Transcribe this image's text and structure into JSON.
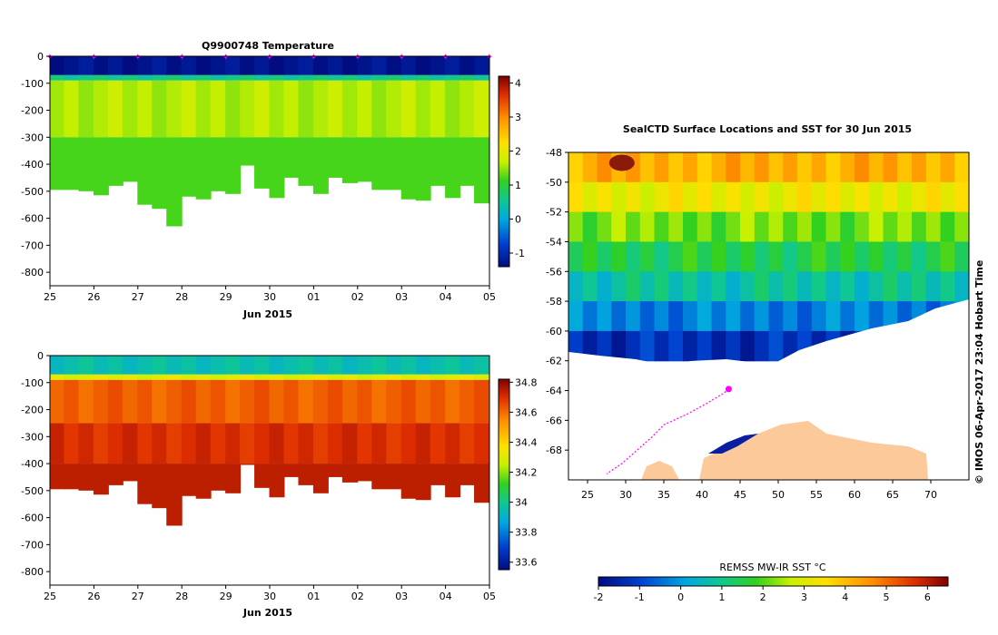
{
  "chart_data": [
    {
      "type": "heatmap",
      "id": "temperature",
      "title": "Q9900748  Temperature",
      "xlabel": "Jun 2015",
      "ylabel": "",
      "x_tick_labels": [
        "25",
        "26",
        "27",
        "28",
        "29",
        "30",
        "01",
        "02",
        "03",
        "04",
        "05"
      ],
      "x_tick_days": [
        0,
        1,
        2,
        3,
        4,
        5,
        6,
        7,
        8,
        9,
        10
      ],
      "ylim": [
        -850,
        0
      ],
      "y_ticks": [
        0,
        -100,
        -200,
        -300,
        -400,
        -500,
        -600,
        -700,
        -800
      ],
      "colorbar": {
        "min": -1.4,
        "max": 4.2,
        "ticks": [
          -1,
          0,
          1,
          2,
          3,
          4
        ]
      },
      "surface_markers_days": [
        0,
        1,
        2,
        3,
        4,
        5,
        6,
        7,
        8,
        9,
        10
      ],
      "layers": [
        {
          "from": 0,
          "to": -70,
          "value": -1.3
        },
        {
          "from": -70,
          "to": -90,
          "value": 0.6
        },
        {
          "from": -90,
          "to": -300,
          "value": 1.6
        },
        {
          "from": -300,
          "to": -500,
          "value": 1.2
        }
      ],
      "profile_days": [
        0,
        0.33,
        0.66,
        1,
        1.33,
        1.66,
        2,
        2.33,
        2.66,
        3,
        3.33,
        3.66,
        4,
        4.33,
        4.66,
        5,
        5.33,
        5.66,
        6,
        6.33,
        6.66,
        7,
        7.33,
        7.66,
        8,
        8.33,
        8.66,
        9,
        9.33,
        9.66,
        10
      ],
      "profile_max_depth": [
        -495,
        -495,
        -500,
        -515,
        -480,
        -465,
        -550,
        -565,
        -630,
        -520,
        -530,
        -500,
        -510,
        -405,
        -490,
        -525,
        -450,
        -480,
        -510,
        -450,
        -470,
        -465,
        -495,
        -495,
        -530,
        -535,
        -480,
        -525,
        -480,
        -545,
        -460
      ]
    },
    {
      "type": "heatmap",
      "id": "salinity",
      "title": "",
      "xlabel": "Jun 2015",
      "ylabel": "",
      "x_tick_labels": [
        "25",
        "26",
        "27",
        "28",
        "29",
        "30",
        "01",
        "02",
        "03",
        "04",
        "05"
      ],
      "x_tick_days": [
        0,
        1,
        2,
        3,
        4,
        5,
        6,
        7,
        8,
        9,
        10
      ],
      "ylim": [
        -850,
        0
      ],
      "y_ticks": [
        0,
        -100,
        -200,
        -300,
        -400,
        -500,
        -600,
        -700,
        -800
      ],
      "colorbar": {
        "min": 33.55,
        "max": 34.82,
        "ticks": [
          33.6,
          33.8,
          34,
          34.2,
          34.4,
          34.6,
          34.8
        ]
      },
      "layers": [
        {
          "from": 0,
          "to": -70,
          "value": 33.95
        },
        {
          "from": -70,
          "to": -90,
          "value": 34.3
        },
        {
          "from": -90,
          "to": -250,
          "value": 34.62
        },
        {
          "from": -250,
          "to": -400,
          "value": 34.7
        },
        {
          "from": -400,
          "to": -500,
          "value": 34.74
        }
      ],
      "profile_days": [
        0,
        0.33,
        0.66,
        1,
        1.33,
        1.66,
        2,
        2.33,
        2.66,
        3,
        3.33,
        3.66,
        4,
        4.33,
        4.66,
        5,
        5.33,
        5.66,
        6,
        6.33,
        6.66,
        7,
        7.33,
        7.66,
        8,
        8.33,
        8.66,
        9,
        9.33,
        9.66,
        10
      ],
      "profile_max_depth": [
        -495,
        -495,
        -500,
        -515,
        -480,
        -465,
        -550,
        -565,
        -630,
        -520,
        -530,
        -500,
        -510,
        -405,
        -490,
        -525,
        -450,
        -480,
        -510,
        -450,
        -470,
        -465,
        -495,
        -495,
        -530,
        -535,
        -480,
        -525,
        -480,
        -545,
        -460
      ]
    },
    {
      "type": "heatmap",
      "id": "sst_map",
      "title": "SealCTD Surface Locations and SST for 30 Jun 2015",
      "xlabel": "",
      "ylabel": "",
      "xlim": [
        22.5,
        75
      ],
      "ylim": [
        -70,
        -48
      ],
      "x_ticks": [
        25,
        30,
        35,
        40,
        45,
        50,
        55,
        60,
        65,
        70
      ],
      "y_ticks": [
        -48,
        -50,
        -52,
        -54,
        -56,
        -58,
        -60,
        -62,
        -64,
        -66,
        -68
      ],
      "y_tick_labels": [
        "-48",
        "-50",
        "-52",
        "-54",
        "-56",
        "-58",
        "-60",
        "-62",
        "-64",
        "-66",
        "-68"
      ],
      "colorbar": {
        "label": "REMSS MW-IR SST °C",
        "min": -2,
        "max": 6.5,
        "ticks": [
          -2,
          -1,
          0,
          1,
          2,
          3,
          4,
          5,
          6
        ]
      },
      "sst_bands": [
        {
          "lat_from": -48,
          "lat_to": -50,
          "value": 4.2
        },
        {
          "lat_from": -50,
          "lat_to": -52,
          "value": 3.2
        },
        {
          "lat_from": -52,
          "lat_to": -54,
          "value": 2.2
        },
        {
          "lat_from": -54,
          "lat_to": -56,
          "value": 1.5
        },
        {
          "lat_from": -56,
          "lat_to": -58,
          "value": 0.8
        },
        {
          "lat_from": -58,
          "lat_to": -60,
          "value": -0.3
        },
        {
          "lat_from": -60,
          "lat_to": -62,
          "value": -1.3
        }
      ],
      "track": [
        [
          43.5,
          -63.9
        ],
        [
          42.8,
          -64.2
        ],
        [
          40.5,
          -64.9
        ],
        [
          38,
          -65.6
        ],
        [
          35,
          -66.3
        ],
        [
          33.5,
          -67.1
        ],
        [
          31.5,
          -68
        ],
        [
          29.5,
          -68.9
        ],
        [
          27.5,
          -69.6
        ]
      ],
      "watermark": "© IMOS 06-Apr-2017 23:04 Hobart Time"
    }
  ]
}
